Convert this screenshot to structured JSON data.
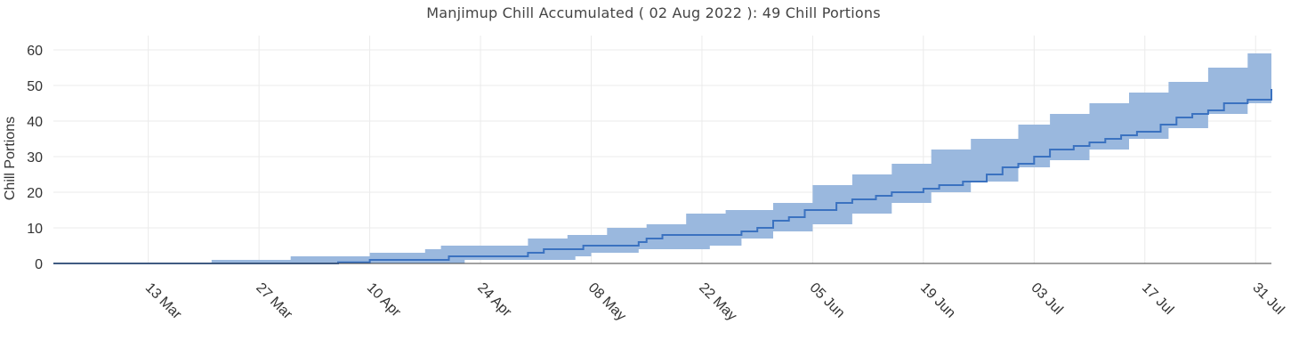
{
  "chart_data": {
    "type": "area",
    "title": "Manjimup Chill Accumulated ( 02 Aug 2022 ): 49 Chill Portions",
    "ylabel": "Chill Portions",
    "xlabel": "",
    "ylim": [
      0,
      64
    ],
    "xlim": [
      "2022-03-01",
      "2022-08-02"
    ],
    "y_ticks": [
      0,
      10,
      20,
      30,
      40,
      50,
      60
    ],
    "x_ticks": [
      {
        "date": "2022-03-13",
        "label": "13 Mar"
      },
      {
        "date": "2022-03-27",
        "label": "27 Mar"
      },
      {
        "date": "2022-04-10",
        "label": "10 Apr"
      },
      {
        "date": "2022-04-24",
        "label": "24 Apr"
      },
      {
        "date": "2022-05-08",
        "label": "08 May"
      },
      {
        "date": "2022-05-22",
        "label": "22 May"
      },
      {
        "date": "2022-06-05",
        "label": "05 Jun"
      },
      {
        "date": "2022-06-19",
        "label": "19 Jun"
      },
      {
        "date": "2022-07-03",
        "label": "03 Jul"
      },
      {
        "date": "2022-07-17",
        "label": "17 Jul"
      },
      {
        "date": "2022-07-31",
        "label": "31 Jul"
      }
    ],
    "grid": true,
    "colors": {
      "line": "#3b72c0",
      "band": "#9ab8de",
      "grid": "#ebebeb",
      "zeroline": "#444444"
    },
    "series": [
      {
        "role": "current-season",
        "points": [
          [
            "2022-03-01",
            0
          ],
          [
            "2022-03-20",
            0
          ],
          [
            "2022-04-06",
            0.3
          ],
          [
            "2022-04-10",
            1
          ],
          [
            "2022-04-19",
            1
          ],
          [
            "2022-04-20",
            2
          ],
          [
            "2022-04-29",
            2
          ],
          [
            "2022-04-30",
            3
          ],
          [
            "2022-05-02",
            4
          ],
          [
            "2022-05-06",
            4
          ],
          [
            "2022-05-07",
            5
          ],
          [
            "2022-05-13",
            5
          ],
          [
            "2022-05-14",
            6
          ],
          [
            "2022-05-15",
            7
          ],
          [
            "2022-05-17",
            8
          ],
          [
            "2022-05-26",
            8
          ],
          [
            "2022-05-27",
            9
          ],
          [
            "2022-05-29",
            10
          ],
          [
            "2022-05-31",
            12
          ],
          [
            "2022-06-02",
            13
          ],
          [
            "2022-06-04",
            15
          ],
          [
            "2022-06-08",
            17
          ],
          [
            "2022-06-10",
            18
          ],
          [
            "2022-06-13",
            19
          ],
          [
            "2022-06-15",
            20
          ],
          [
            "2022-06-19",
            21
          ],
          [
            "2022-06-21",
            22
          ],
          [
            "2022-06-24",
            23
          ],
          [
            "2022-06-27",
            25
          ],
          [
            "2022-06-29",
            27
          ],
          [
            "2022-07-01",
            28
          ],
          [
            "2022-07-03",
            30
          ],
          [
            "2022-07-05",
            32
          ],
          [
            "2022-07-08",
            33
          ],
          [
            "2022-07-10",
            34
          ],
          [
            "2022-07-12",
            35
          ],
          [
            "2022-07-14",
            36
          ],
          [
            "2022-07-16",
            37
          ],
          [
            "2022-07-19",
            39
          ],
          [
            "2022-07-21",
            41
          ],
          [
            "2022-07-23",
            42
          ],
          [
            "2022-07-25",
            43
          ],
          [
            "2022-07-27",
            45
          ],
          [
            "2022-07-30",
            46
          ],
          [
            "2022-08-02",
            49
          ]
        ]
      },
      {
        "role": "range-upper",
        "points": [
          [
            "2022-03-01",
            0
          ],
          [
            "2022-03-20",
            0
          ],
          [
            "2022-03-21",
            1
          ],
          [
            "2022-03-30",
            1
          ],
          [
            "2022-03-31",
            2
          ],
          [
            "2022-04-09",
            2
          ],
          [
            "2022-04-10",
            3
          ],
          [
            "2022-04-15",
            3
          ],
          [
            "2022-04-17",
            4
          ],
          [
            "2022-04-19",
            5
          ],
          [
            "2022-04-27",
            5
          ],
          [
            "2022-04-30",
            7
          ],
          [
            "2022-05-05",
            8
          ],
          [
            "2022-05-10",
            10
          ],
          [
            "2022-05-15",
            11
          ],
          [
            "2022-05-20",
            14
          ],
          [
            "2022-05-25",
            15
          ],
          [
            "2022-05-31",
            17
          ],
          [
            "2022-06-05",
            22
          ],
          [
            "2022-06-10",
            25
          ],
          [
            "2022-06-15",
            28
          ],
          [
            "2022-06-20",
            32
          ],
          [
            "2022-06-25",
            35
          ],
          [
            "2022-07-01",
            39
          ],
          [
            "2022-07-05",
            42
          ],
          [
            "2022-07-10",
            45
          ],
          [
            "2022-07-15",
            48
          ],
          [
            "2022-07-20",
            51
          ],
          [
            "2022-07-25",
            55
          ],
          [
            "2022-07-30",
            59
          ],
          [
            "2022-08-02",
            61
          ]
        ]
      },
      {
        "role": "range-lower",
        "points": [
          [
            "2022-03-01",
            0
          ],
          [
            "2022-04-20",
            0
          ],
          [
            "2022-04-22",
            1
          ],
          [
            "2022-05-03",
            1
          ],
          [
            "2022-05-06",
            2
          ],
          [
            "2022-05-08",
            3
          ],
          [
            "2022-05-14",
            4
          ],
          [
            "2022-05-23",
            5
          ],
          [
            "2022-05-27",
            7
          ],
          [
            "2022-05-31",
            9
          ],
          [
            "2022-06-05",
            11
          ],
          [
            "2022-06-10",
            14
          ],
          [
            "2022-06-15",
            17
          ],
          [
            "2022-06-20",
            20
          ],
          [
            "2022-06-25",
            23
          ],
          [
            "2022-07-01",
            27
          ],
          [
            "2022-07-05",
            29
          ],
          [
            "2022-07-10",
            32
          ],
          [
            "2022-07-15",
            35
          ],
          [
            "2022-07-20",
            38
          ],
          [
            "2022-07-25",
            42
          ],
          [
            "2022-07-30",
            45
          ],
          [
            "2022-08-02",
            47
          ]
        ]
      }
    ]
  }
}
